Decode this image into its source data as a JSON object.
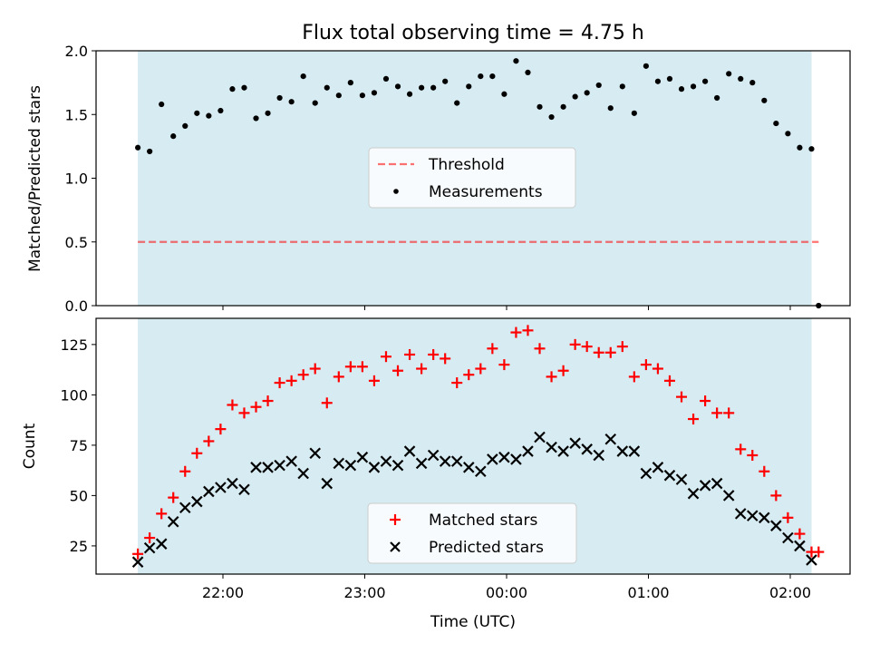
{
  "chart_data": [
    {
      "type": "scatter",
      "title": "Flux total observing time = 4.75 h",
      "xlabel": "",
      "ylabel": "Matched/Predicted stars",
      "ylim": [
        0,
        2.0
      ],
      "yticks": [
        "0.0",
        "0.5",
        "1.0",
        "1.5",
        "2.0"
      ],
      "threshold": 0.5,
      "observing_window_utc": [
        "21:24",
        "02:09"
      ],
      "legend_position": "center",
      "colors": {
        "band": "#add8e6",
        "threshold": "#ff0000",
        "measurements": "#000000"
      },
      "series": [
        {
          "name": "Threshold",
          "style": "dashed-line",
          "values": [
            0.5,
            0.5
          ],
          "x": [
            "21:24",
            "02:12"
          ]
        },
        {
          "name": "Measurements",
          "style": "points",
          "x": [
            "21:24",
            "21:29",
            "21:34",
            "21:39",
            "21:44",
            "21:49",
            "21:54",
            "21:59",
            "22:04",
            "22:09",
            "22:14",
            "22:19",
            "22:24",
            "22:29",
            "22:34",
            "22:39",
            "22:44",
            "22:49",
            "22:54",
            "22:59",
            "23:04",
            "23:09",
            "23:14",
            "23:19",
            "23:24",
            "23:29",
            "23:34",
            "23:39",
            "23:44",
            "23:49",
            "23:54",
            "23:59",
            "00:04",
            "00:09",
            "00:14",
            "00:19",
            "00:24",
            "00:29",
            "00:34",
            "00:39",
            "00:44",
            "00:49",
            "00:54",
            "00:59",
            "01:04",
            "01:09",
            "01:14",
            "01:19",
            "01:24",
            "01:29",
            "01:34",
            "01:39",
            "01:44",
            "01:49",
            "01:54",
            "01:59",
            "02:04",
            "02:09",
            "02:12"
          ],
          "values": [
            1.24,
            1.21,
            1.58,
            1.33,
            1.41,
            1.51,
            1.49,
            1.53,
            1.7,
            1.71,
            1.47,
            1.51,
            1.63,
            1.6,
            1.8,
            1.59,
            1.71,
            1.65,
            1.75,
            1.65,
            1.67,
            1.78,
            1.72,
            1.66,
            1.71,
            1.71,
            1.76,
            1.59,
            1.72,
            1.8,
            1.8,
            1.66,
            1.92,
            1.83,
            1.56,
            1.48,
            1.56,
            1.64,
            1.67,
            1.73,
            1.55,
            1.72,
            1.51,
            1.88,
            1.76,
            1.78,
            1.7,
            1.72,
            1.76,
            1.63,
            1.82,
            1.78,
            1.75,
            1.61,
            1.43,
            1.35,
            1.24,
            1.23,
            0.0
          ]
        }
      ]
    },
    {
      "type": "scatter",
      "title": "",
      "xlabel": "Time (UTC)",
      "ylabel": "Count",
      "ylim": [
        11,
        138
      ],
      "yticks": [
        "25",
        "50",
        "75",
        "100",
        "125"
      ],
      "categories": [
        "22:00",
        "23:00",
        "00:00",
        "01:00",
        "02:00"
      ],
      "observing_window_utc": [
        "21:24",
        "02:09"
      ],
      "legend_position": "lower center",
      "colors": {
        "band": "#add8e6",
        "matched": "#ff0000",
        "predicted": "#000000"
      },
      "series": [
        {
          "name": "Matched stars",
          "marker": "plus",
          "x": [
            "21:24",
            "21:29",
            "21:34",
            "21:39",
            "21:44",
            "21:49",
            "21:54",
            "21:59",
            "22:04",
            "22:09",
            "22:14",
            "22:19",
            "22:24",
            "22:29",
            "22:34",
            "22:39",
            "22:44",
            "22:49",
            "22:54",
            "22:59",
            "23:04",
            "23:09",
            "23:14",
            "23:19",
            "23:24",
            "23:29",
            "23:34",
            "23:39",
            "23:44",
            "23:49",
            "23:54",
            "23:59",
            "00:04",
            "00:09",
            "00:14",
            "00:19",
            "00:24",
            "00:29",
            "00:34",
            "00:39",
            "00:44",
            "00:49",
            "00:54",
            "00:59",
            "01:04",
            "01:09",
            "01:14",
            "01:19",
            "01:24",
            "01:29",
            "01:34",
            "01:39",
            "01:44",
            "01:49",
            "01:54",
            "01:59",
            "02:04",
            "02:09",
            "02:12"
          ],
          "values": [
            21,
            29,
            41,
            49,
            62,
            71,
            77,
            83,
            95,
            91,
            94,
            97,
            106,
            107,
            110,
            113,
            96,
            109,
            114,
            114,
            107,
            119,
            112,
            120,
            113,
            120,
            118,
            106,
            110,
            113,
            123,
            115,
            131,
            132,
            123,
            109,
            112,
            125,
            124,
            121,
            121,
            124,
            109,
            115,
            113,
            107,
            99,
            88,
            97,
            91,
            91,
            73,
            70,
            62,
            50,
            39,
            31,
            22,
            22
          ]
        },
        {
          "name": "Predicted stars",
          "marker": "x",
          "x": [
            "21:24",
            "21:29",
            "21:34",
            "21:39",
            "21:44",
            "21:49",
            "21:54",
            "21:59",
            "22:04",
            "22:09",
            "22:14",
            "22:19",
            "22:24",
            "22:29",
            "22:34",
            "22:39",
            "22:44",
            "22:49",
            "22:54",
            "22:59",
            "23:04",
            "23:09",
            "23:14",
            "23:19",
            "23:24",
            "23:29",
            "23:34",
            "23:39",
            "23:44",
            "23:49",
            "23:54",
            "23:59",
            "00:04",
            "00:09",
            "00:14",
            "00:19",
            "00:24",
            "00:29",
            "00:34",
            "00:39",
            "00:44",
            "00:49",
            "00:54",
            "00:59",
            "01:04",
            "01:09",
            "01:14",
            "01:19",
            "01:24",
            "01:29",
            "01:34",
            "01:39",
            "01:44",
            "01:49",
            "01:54",
            "01:59",
            "02:04",
            "02:09"
          ],
          "values": [
            17,
            24,
            26,
            37,
            44,
            47,
            52,
            54,
            56,
            53,
            64,
            64,
            65,
            67,
            61,
            71,
            56,
            66,
            65,
            69,
            64,
            67,
            65,
            72,
            66,
            70,
            67,
            67,
            64,
            62,
            68,
            69,
            68,
            72,
            79,
            74,
            72,
            76,
            73,
            70,
            78,
            72,
            72,
            61,
            64,
            60,
            58,
            51,
            55,
            56,
            50,
            41,
            40,
            39,
            35,
            29,
            25,
            18
          ]
        }
      ]
    }
  ]
}
